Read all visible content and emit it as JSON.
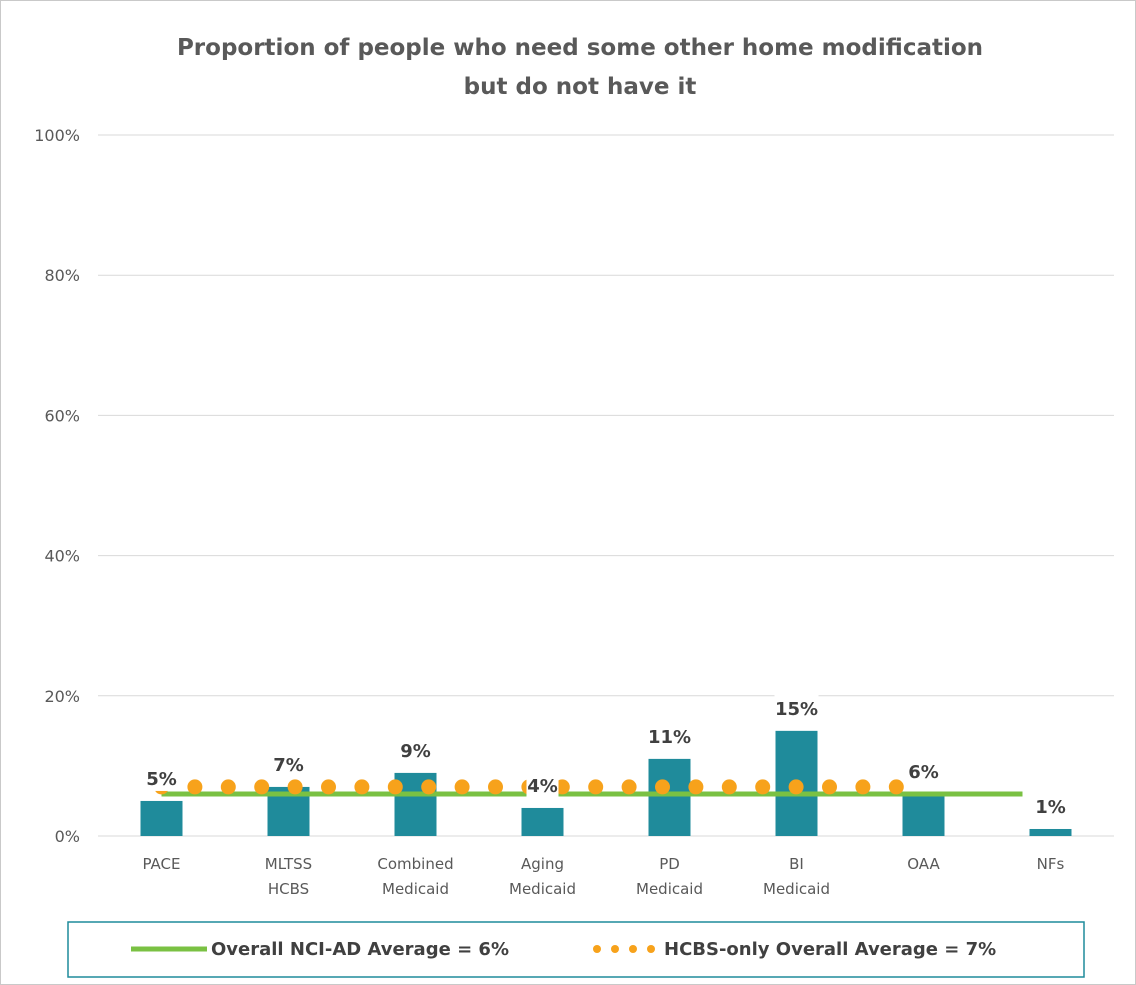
{
  "chart_data": {
    "type": "bar",
    "title_lines": [
      "Proportion of people who need some other home modification",
      "but do not have it"
    ],
    "categories": [
      [
        "PACE"
      ],
      [
        "MLTSS",
        "HCBS"
      ],
      [
        "Combined",
        "Medicaid"
      ],
      [
        "Aging",
        "Medicaid"
      ],
      [
        "PD",
        "Medicaid"
      ],
      [
        "BI",
        "Medicaid"
      ],
      [
        "OAA"
      ],
      [
        "NFs"
      ]
    ],
    "values": [
      5,
      7,
      9,
      4,
      11,
      15,
      6,
      1
    ],
    "data_labels": [
      "5%",
      "7%",
      "9%",
      "4%",
      "11%",
      "15%",
      "6%",
      "1%"
    ],
    "ylim": [
      0,
      100
    ],
    "y_ticks": [
      0,
      20,
      40,
      60,
      80,
      100
    ],
    "y_tick_labels": [
      "0%",
      "20%",
      "40%",
      "60%",
      "80%",
      "100%"
    ],
    "grid": true,
    "bar_color": "#1f8b9b",
    "reference_lines": [
      {
        "label": "Overall NCI-AD Average = 6%",
        "value": 6,
        "style": "solid",
        "color": "#7ac143"
      },
      {
        "label": "HCBS-only Overall Average = 7%",
        "value": 7,
        "style": "dotted",
        "color": "#f7a21b"
      }
    ],
    "legend_position": "bottom"
  }
}
